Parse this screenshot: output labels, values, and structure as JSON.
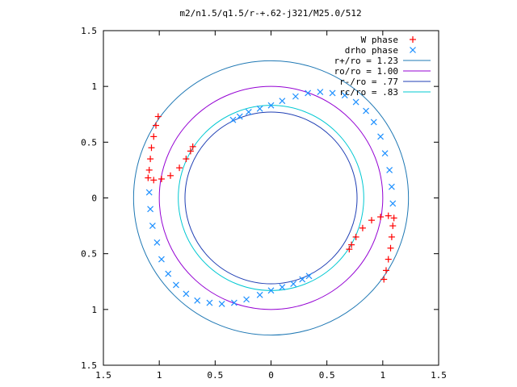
{
  "chart_data": {
    "type": "scatter",
    "title": "m2/n1.5/q1.5/r-+.62-j321/M25.0/512",
    "xlabel": "",
    "ylabel": "",
    "xlim": [
      -1.5,
      1.5
    ],
    "ylim": [
      -1.5,
      1.5
    ],
    "xticks": [
      -1.5,
      -1,
      -0.5,
      0,
      0.5,
      1,
      1.5
    ],
    "yticks": [
      -1.5,
      -1,
      -0.5,
      0,
      0.5,
      1,
      1.5
    ],
    "xtick_labels": [
      "1.5",
      "1",
      "0.5",
      "0",
      "0.5",
      "1",
      "1.5"
    ],
    "ytick_labels": [
      "1.5",
      "1",
      "0.5",
      "0",
      "0.5",
      "1",
      "1.5"
    ],
    "grid": false,
    "legend_position": "top-right",
    "series": [
      {
        "name": "W phase",
        "marker": "plus",
        "color": "#ff0000",
        "arms": [
          {
            "center": [
              0,
              0
            ],
            "points": [
              [
                -1.1,
                0.18
              ],
              [
                -1.05,
                0.16
              ],
              [
                -0.98,
                0.17
              ],
              [
                -0.9,
                0.2
              ],
              [
                -0.82,
                0.27
              ],
              [
                -0.76,
                0.35
              ],
              [
                -0.72,
                0.42
              ],
              [
                -0.7,
                0.46
              ],
              [
                -1.09,
                0.25
              ],
              [
                -1.08,
                0.35
              ],
              [
                -1.07,
                0.45
              ],
              [
                -1.05,
                0.55
              ],
              [
                -1.03,
                0.65
              ],
              [
                -1.01,
                0.73
              ]
            ]
          },
          {
            "center": [
              0,
              0
            ],
            "points": [
              [
                1.1,
                -0.18
              ],
              [
                1.05,
                -0.16
              ],
              [
                0.98,
                -0.17
              ],
              [
                0.9,
                -0.2
              ],
              [
                0.82,
                -0.27
              ],
              [
                0.76,
                -0.35
              ],
              [
                0.72,
                -0.42
              ],
              [
                0.7,
                -0.46
              ],
              [
                1.09,
                -0.25
              ],
              [
                1.08,
                -0.35
              ],
              [
                1.07,
                -0.45
              ],
              [
                1.05,
                -0.55
              ],
              [
                1.03,
                -0.65
              ],
              [
                1.01,
                -0.73
              ]
            ]
          }
        ]
      },
      {
        "name": "drho phase",
        "marker": "cross",
        "color": "#1e90ff",
        "points": [
          [
            -1.09,
            0.05
          ],
          [
            -1.08,
            -0.1
          ],
          [
            -1.06,
            -0.25
          ],
          [
            -1.02,
            -0.4
          ],
          [
            -0.98,
            -0.55
          ],
          [
            -0.92,
            -0.68
          ],
          [
            -0.85,
            -0.78
          ],
          [
            -0.76,
            -0.86
          ],
          [
            -0.66,
            -0.92
          ],
          [
            -0.55,
            -0.94
          ],
          [
            -0.44,
            -0.95
          ],
          [
            -0.33,
            -0.94
          ],
          [
            -0.22,
            -0.91
          ],
          [
            -0.1,
            -0.87
          ],
          [
            0.0,
            -0.83
          ],
          [
            0.1,
            -0.8
          ],
          [
            0.2,
            -0.77
          ],
          [
            0.28,
            -0.73
          ],
          [
            0.34,
            -0.7
          ],
          [
            1.09,
            -0.05
          ],
          [
            1.08,
            0.1
          ],
          [
            1.06,
            0.25
          ],
          [
            1.02,
            0.4
          ],
          [
            0.98,
            0.55
          ],
          [
            0.92,
            0.68
          ],
          [
            0.85,
            0.78
          ],
          [
            0.76,
            0.86
          ],
          [
            0.66,
            0.92
          ],
          [
            0.55,
            0.94
          ],
          [
            0.44,
            0.95
          ],
          [
            0.33,
            0.94
          ],
          [
            0.22,
            0.91
          ],
          [
            0.1,
            0.87
          ],
          [
            0.0,
            0.83
          ],
          [
            -0.1,
            0.8
          ],
          [
            -0.2,
            0.77
          ],
          [
            -0.28,
            0.73
          ],
          [
            -0.34,
            0.7
          ]
        ]
      },
      {
        "name": "r+/ro = 1.23",
        "shape": "circle",
        "radius": 1.23,
        "color": "#1f78b4"
      },
      {
        "name": "ro/ro = 1.00",
        "shape": "circle",
        "radius": 1.0,
        "color": "#9400d3"
      },
      {
        "name": "r-/ro = .77",
        "shape": "circle",
        "radius": 0.77,
        "color": "#1f3fb4"
      },
      {
        "name": "rc/ro = .83",
        "shape": "circle",
        "radius": 0.83,
        "color": "#00c8d2"
      }
    ]
  }
}
